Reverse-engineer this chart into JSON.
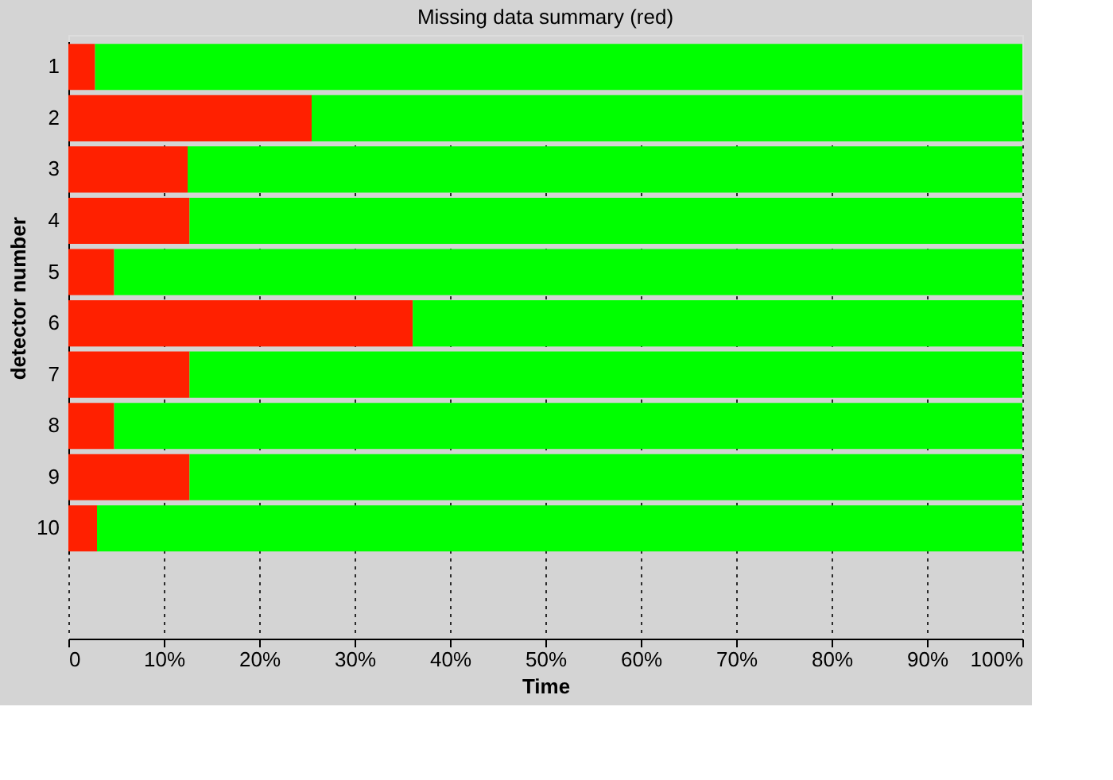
{
  "chart_data": {
    "type": "bar",
    "orientation": "horizontal",
    "stacked": true,
    "title": "Missing data summary (red)",
    "xlabel": "Time",
    "ylabel": "detector number",
    "categories": [
      "1",
      "2",
      "3",
      "4",
      "5",
      "6",
      "7",
      "8",
      "9",
      "10"
    ],
    "series": [
      {
        "color": "#ff2000",
        "values": [
          2.8,
          25.5,
          12.5,
          12.7,
          4.8,
          36.1,
          12.7,
          4.8,
          12.7,
          3.0
        ]
      },
      {
        "color": "#00ff00",
        "values": [
          97.2,
          74.5,
          87.5,
          87.3,
          95.2,
          63.9,
          87.3,
          95.2,
          87.3,
          97.0
        ]
      }
    ],
    "xlim": [
      0,
      100
    ],
    "xticks": [
      0,
      {
        "value": 10,
        "label": "10%"
      },
      {
        "value": 20,
        "label": "20%"
      },
      {
        "value": 30,
        "label": "30%"
      },
      {
        "value": 40,
        "label": "40%"
      },
      {
        "value": 50,
        "label": "50%"
      },
      {
        "value": 60,
        "label": "60%"
      },
      {
        "value": 70,
        "label": "70%"
      },
      {
        "value": 80,
        "label": "80%"
      },
      {
        "value": 90,
        "label": "90%"
      },
      {
        "value": 100,
        "label": "100%"
      }
    ],
    "grid": "x",
    "legend": false
  }
}
